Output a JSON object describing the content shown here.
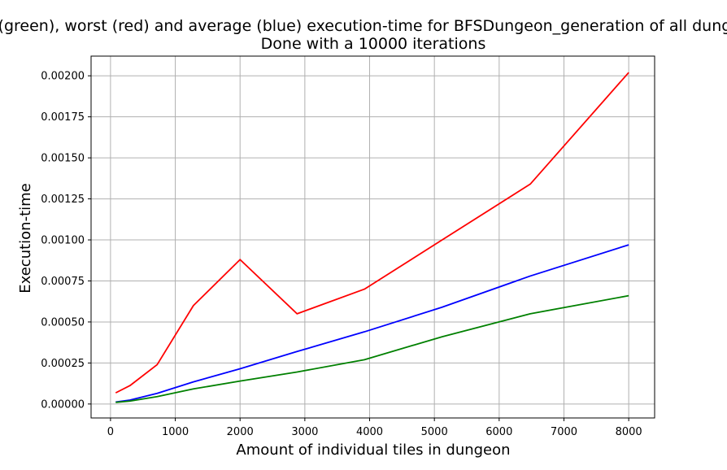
{
  "chart_data": {
    "type": "line",
    "title": "Best (green), worst (red) and average (blue) execution-time for BFSDungeon_generation of all dungeons",
    "subtitle": "Done with a 10000 iterations",
    "xlabel": "Amount of individual tiles in dungeon",
    "ylabel": "Execution-time",
    "xlim": [
      -300,
      8400
    ],
    "ylim": [
      -8.5e-05,
      0.00212
    ],
    "xticks": [
      0,
      1000,
      2000,
      3000,
      4000,
      5000,
      6000,
      7000,
      8000
    ],
    "xtick_labels": [
      "0",
      "1000",
      "2000",
      "3000",
      "4000",
      "5000",
      "6000",
      "7000",
      "8000"
    ],
    "yticks": [
      0,
      0.00025,
      0.0005,
      0.00075,
      0.001,
      0.00125,
      0.0015,
      0.00175,
      0.002
    ],
    "ytick_labels": [
      "0.00000",
      "0.00025",
      "0.00050",
      "0.00075",
      "0.00100",
      "0.00125",
      "0.00150",
      "0.00175",
      "0.00200"
    ],
    "grid": true,
    "legend": "none",
    "series": [
      {
        "color": "#ff0000",
        "x": [
          80,
          300,
          720,
          1280,
          2000,
          2880,
          3920,
          5120,
          6480,
          8000
        ],
        "y": [
          6.8e-05,
          0.000112,
          0.00024,
          0.0006,
          0.00088,
          0.00055,
          0.0007,
          0.001,
          0.00134,
          0.00202
        ]
      },
      {
        "color": "#0000ff",
        "x": [
          80,
          300,
          720,
          1280,
          2000,
          2880,
          3920,
          5120,
          6480,
          8000
        ],
        "y": [
          1.2e-05,
          2.4e-05,
          6.5e-05,
          0.000135,
          0.000215,
          0.00032,
          0.00044,
          0.00059,
          0.00078,
          0.00097
        ]
      },
      {
        "color": "#008000",
        "x": [
          80,
          300,
          720,
          1280,
          2000,
          2880,
          3920,
          5120,
          6480,
          8000
        ],
        "y": [
          1e-05,
          1.8e-05,
          4.5e-05,
          9.2e-05,
          0.00014,
          0.000195,
          0.00027,
          0.00041,
          0.00055,
          0.00066
        ]
      }
    ]
  }
}
